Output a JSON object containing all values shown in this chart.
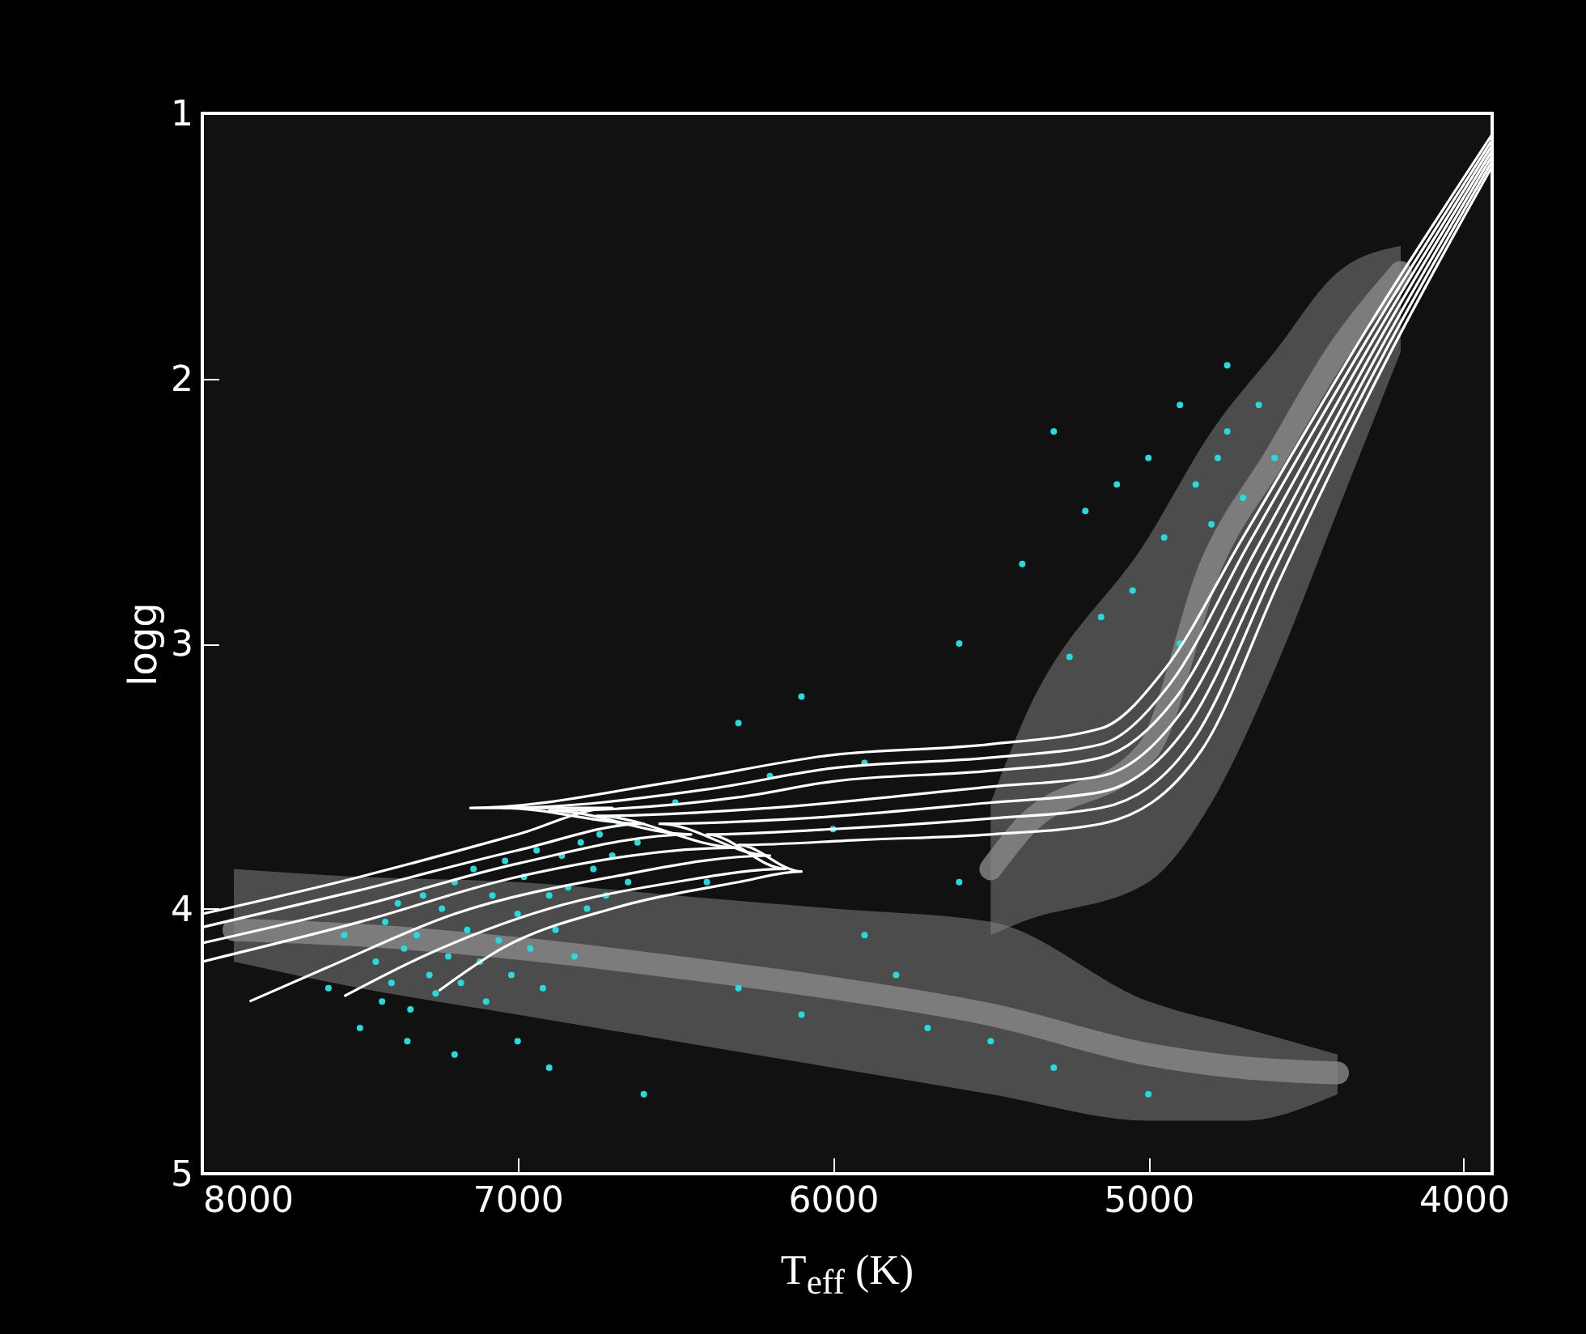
{
  "chart_data": {
    "type": "line",
    "xlabel": "T$_{eff}$ (K)",
    "ylabel": "logg",
    "xlim": [
      8000,
      3910
    ],
    "xticks": [
      8000,
      7000,
      6000,
      5000,
      4000
    ],
    "ylim": [
      5,
      1
    ],
    "yticks": [
      1,
      2,
      3,
      4,
      5
    ],
    "grid": false,
    "series": [
      {
        "type": "area",
        "color": "#888888",
        "x": [
          7900,
          7500,
          7000,
          6500,
          6000,
          5500,
          5000,
          4700,
          4400
        ],
        "values": [
          4.08,
          4.1,
          4.15,
          4.22,
          4.3,
          4.4,
          4.55,
          4.6,
          4.62
        ],
        "lower": [
          3.85,
          3.88,
          3.9,
          3.95,
          4.0,
          4.05,
          4.35,
          4.45,
          4.55
        ],
        "upper": [
          4.2,
          4.3,
          4.4,
          4.5,
          4.6,
          4.7,
          4.8,
          4.8,
          4.7
        ]
      },
      {
        "type": "area",
        "color": "#888888",
        "x": [
          5500,
          5400,
          5000,
          4800,
          4600,
          4400,
          4200
        ],
        "values": [
          3.85,
          3.7,
          3.4,
          2.7,
          2.3,
          1.9,
          1.6
        ],
        "lower": [
          3.6,
          3.3,
          2.6,
          2.2,
          1.9,
          1.6,
          1.5
        ],
        "upper": [
          4.1,
          4.05,
          3.9,
          3.6,
          3.1,
          2.5,
          1.9
        ]
      },
      {
        "type": "scatter",
        "color": "#22dddd",
        "x": [
          7450,
          7430,
          7420,
          7400,
          7380,
          7360,
          7340,
          7320,
          7300,
          7280,
          7260,
          7240,
          7220,
          7200,
          7180,
          7160,
          7140,
          7120,
          7100,
          7080,
          7060,
          7040,
          7020,
          7000,
          6980,
          6960,
          6940,
          6920,
          6900,
          6880,
          6860,
          6840,
          6820,
          6800,
          6780,
          6760,
          6740,
          6720,
          6700,
          6680,
          6650,
          6620,
          7550,
          7600,
          7500,
          7350,
          7200,
          7000,
          6900,
          6500,
          6400,
          6300,
          6200,
          6100,
          6000,
          5900,
          5800,
          5700,
          5600,
          5500,
          5300,
          5000,
          6600,
          6300,
          6100,
          5900,
          5600,
          5400,
          5300,
          5200,
          5100,
          5050,
          5000,
          4950,
          4900,
          4850,
          4800,
          4780,
          4750,
          4700,
          4650,
          4600,
          4750,
          5150,
          5250,
          4900
        ],
        "values": [
          4.2,
          4.35,
          4.05,
          4.28,
          3.98,
          4.15,
          4.38,
          4.1,
          3.95,
          4.25,
          4.32,
          4.0,
          4.18,
          3.9,
          4.28,
          4.08,
          3.85,
          4.2,
          4.35,
          3.95,
          4.12,
          3.82,
          4.25,
          4.02,
          3.88,
          4.15,
          3.78,
          4.3,
          3.95,
          4.08,
          3.8,
          3.92,
          4.18,
          3.75,
          4.0,
          3.85,
          3.72,
          3.95,
          3.8,
          3.68,
          3.9,
          3.75,
          4.1,
          4.3,
          4.45,
          4.5,
          4.55,
          4.5,
          4.6,
          3.6,
          3.9,
          4.3,
          3.5,
          4.4,
          3.7,
          4.1,
          4.25,
          4.45,
          3.9,
          4.5,
          4.6,
          4.7,
          4.7,
          3.3,
          3.2,
          3.45,
          3.0,
          2.7,
          2.2,
          2.5,
          2.4,
          2.8,
          2.3,
          2.6,
          2.1,
          2.4,
          2.55,
          2.3,
          2.2,
          2.45,
          2.1,
          2.3,
          1.95,
          2.9,
          3.05,
          3.0
        ]
      },
      {
        "color": "#ffffff",
        "x": [
          8000,
          7500,
          7000,
          6700,
          7150,
          6500,
          6000,
          5500,
          5150,
          4950,
          4700,
          4300,
          3910
        ],
        "values": [
          4.02,
          3.88,
          3.72,
          3.62,
          3.62,
          3.52,
          3.42,
          3.38,
          3.32,
          3.1,
          2.6,
          1.8,
          1.08
        ]
      },
      {
        "color": "#ffffff",
        "x": [
          8000,
          7500,
          7000,
          6600,
          7050,
          6400,
          6000,
          5500,
          5150,
          4930,
          4680,
          4290,
          3910
        ],
        "values": [
          4.07,
          3.93,
          3.78,
          3.68,
          3.62,
          3.55,
          3.47,
          3.43,
          3.38,
          3.15,
          2.62,
          1.82,
          1.1
        ]
      },
      {
        "color": "#ffffff",
        "x": [
          8000,
          7500,
          7000,
          6450,
          6900,
          6300,
          6000,
          5500,
          5150,
          4910,
          4660,
          4280,
          3910
        ],
        "values": [
          4.13,
          3.99,
          3.83,
          3.72,
          3.63,
          3.58,
          3.52,
          3.48,
          3.43,
          3.2,
          2.65,
          1.84,
          1.12
        ]
      },
      {
        "color": "#ffffff",
        "x": [
          8000,
          7500,
          7000,
          6300,
          6750,
          6200,
          5500,
          5150,
          4890,
          4640,
          4270,
          3910
        ],
        "values": [
          4.2,
          4.05,
          3.88,
          3.77,
          3.65,
          3.62,
          3.54,
          3.5,
          3.25,
          2.68,
          1.86,
          1.14
        ]
      },
      {
        "color": "#ffffff",
        "x": [
          7850,
          7600,
          7200,
          6700,
          6200,
          6550,
          6100,
          5500,
          5150,
          4870,
          4620,
          4260,
          3910
        ],
        "values": [
          4.35,
          4.22,
          4.02,
          3.88,
          3.8,
          3.68,
          3.66,
          3.6,
          3.56,
          3.3,
          2.7,
          1.88,
          1.16
        ]
      },
      {
        "color": "#ffffff",
        "x": [
          7550,
          7300,
          6900,
          6500,
          6150,
          6400,
          6000,
          5500,
          5150,
          4850,
          4600,
          4250,
          3910
        ],
        "values": [
          4.33,
          4.18,
          4.0,
          3.9,
          3.85,
          3.72,
          3.7,
          3.66,
          3.62,
          3.35,
          2.72,
          1.9,
          1.18
        ]
      },
      {
        "color": "#ffffff",
        "x": [
          7250,
          7050,
          6700,
          6300,
          6100,
          6300,
          5900,
          5500,
          5150,
          4830,
          4580,
          4240,
          3910
        ],
        "values": [
          4.31,
          4.15,
          4.0,
          3.9,
          3.86,
          3.76,
          3.74,
          3.72,
          3.68,
          3.4,
          2.75,
          1.92,
          1.2
        ]
      }
    ]
  }
}
